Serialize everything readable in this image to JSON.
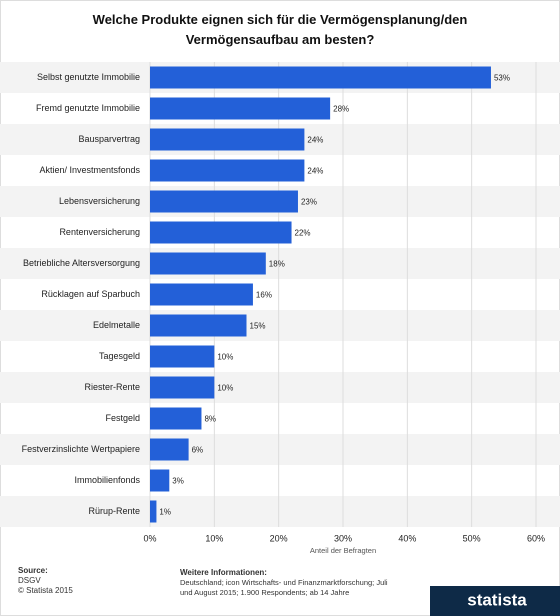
{
  "chart_data": {
    "type": "bar",
    "orientation": "horizontal",
    "title": "Welche Produkte eignen sich für die Vermögensplanung/den Vermögensaufbau am besten?",
    "xlabel": "Anteil der Befragten",
    "categories": [
      "Selbst genutzte Immobilie",
      "Fremd genutzte Immobilie",
      "Bausparvertrag",
      "Aktien/ Investmentsfonds",
      "Lebensversicherung",
      "Rentenversicherung",
      "Betriebliche Altersversorgung",
      "Rücklagen auf Sparbuch",
      "Edelmetalle",
      "Tagesgeld",
      "Riester-Rente",
      "Festgeld",
      "Festverzinslichte Wertpapiere",
      "Immobilienfonds",
      "Rürup-Rente"
    ],
    "values": [
      53,
      28,
      24,
      24,
      23,
      22,
      18,
      16,
      15,
      10,
      10,
      8,
      6,
      3,
      1
    ],
    "value_labels": [
      "53%",
      "28%",
      "24%",
      "24%",
      "23%",
      "22%",
      "18%",
      "16%",
      "15%",
      "10%",
      "10%",
      "8%",
      "6%",
      "3%",
      "1%"
    ],
    "color": "#2360d8",
    "xlim": [
      0,
      60
    ],
    "xticks": [
      {
        "value": 0,
        "label": "0%"
      },
      {
        "value": 10,
        "label": "10%"
      },
      {
        "value": 20,
        "label": "20%"
      },
      {
        "value": 30,
        "label": "30%"
      },
      {
        "value": 40,
        "label": "40%"
      },
      {
        "value": 50,
        "label": "50%"
      },
      {
        "value": 60,
        "label": "60%"
      }
    ],
    "grid": true
  },
  "footer": {
    "source_heading": "Source:",
    "source": "DSGV",
    "copyright": "© Statista 2015",
    "info_heading": "Weitere Informationen:",
    "info": "Deutschland; icon Wirtschafts- und Finanzmarktforschung; Juli und August 2015; 1.900 Respondents; ab 14 Jahre",
    "logo": "statista"
  }
}
